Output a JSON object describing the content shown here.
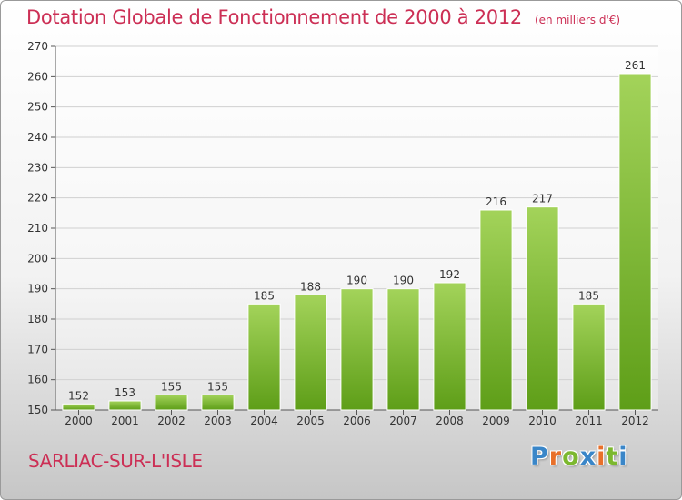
{
  "title": "Dotation Globale de Fonctionnement de 2000 à 2012",
  "subtitle": "(en milliers d'€)",
  "town": "SARLIAC-SUR-L'ISLE",
  "logo": {
    "letters": [
      "P",
      "r",
      "o",
      "x",
      "i",
      "t",
      "i"
    ],
    "colors": [
      "#3a86c8",
      "#e8702a",
      "#7cb82f",
      "#3a86c8",
      "#e8702a",
      "#7cb82f",
      "#3a86c8"
    ]
  },
  "colors": {
    "title": "#cc2f55",
    "bar_top": "#a3d35a",
    "bar_bottom": "#5e9e18"
  },
  "chart_data": {
    "type": "bar",
    "categories": [
      "2000",
      "2001",
      "2002",
      "2003",
      "2004",
      "2005",
      "2006",
      "2007",
      "2008",
      "2009",
      "2010",
      "2011",
      "2012"
    ],
    "values": [
      152,
      153,
      155,
      155,
      185,
      188,
      190,
      190,
      192,
      216,
      217,
      185,
      261
    ],
    "ylim": [
      150,
      270
    ],
    "yticks": [
      150,
      160,
      170,
      180,
      190,
      200,
      210,
      220,
      230,
      240,
      250,
      260,
      270
    ],
    "grid": true,
    "data_labels": true
  }
}
